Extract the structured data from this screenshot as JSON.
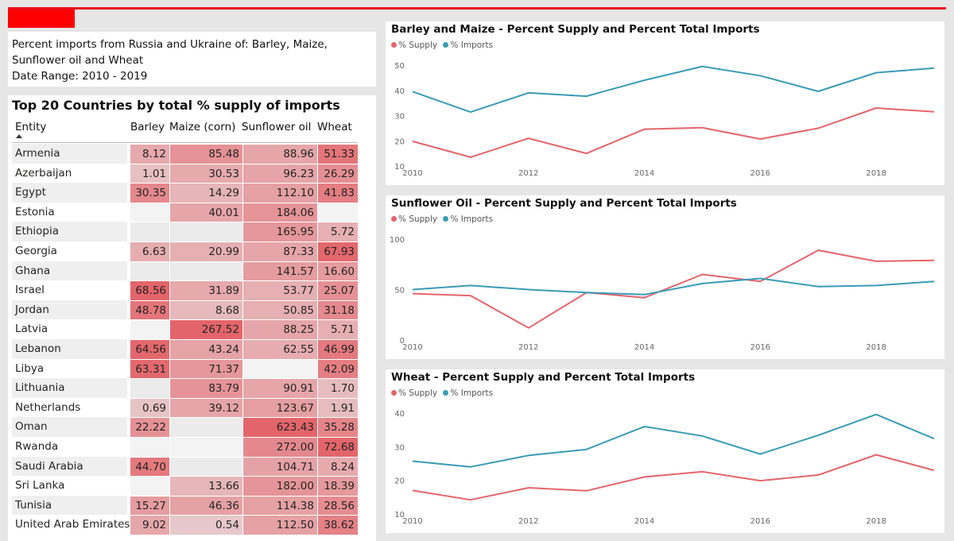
{
  "note": {
    "lines": [
      "Percent imports from Russia and Ukraine of: Barley, Maize,",
      "Sunflower oil and Wheat",
      "Date Range: 2010 - 2019"
    ]
  },
  "table": {
    "title": "Top 20 Countries by total % supply of imports",
    "headers": {
      "entity": "Entity",
      "barley": "Barley",
      "maize": "Maize (corn)",
      "sunflower": "Sunflower oil",
      "wheat": "Wheat"
    },
    "heat_color": "#e3656b",
    "rows": [
      {
        "entity": "Armenia",
        "barley": "8.12",
        "maize": "85.48",
        "sunflower": "88.96",
        "wheat": "51.33"
      },
      {
        "entity": "Azerbaijan",
        "barley": "1.01",
        "maize": "30.53",
        "sunflower": "96.23",
        "wheat": "26.29"
      },
      {
        "entity": "Egypt",
        "barley": "30.35",
        "maize": "14.29",
        "sunflower": "112.10",
        "wheat": "41.83"
      },
      {
        "entity": "Estonia",
        "barley": "",
        "maize": "40.01",
        "sunflower": "184.06",
        "wheat": ""
      },
      {
        "entity": "Ethiopia",
        "barley": "",
        "maize": "",
        "sunflower": "165.95",
        "wheat": "5.72"
      },
      {
        "entity": "Georgia",
        "barley": "6.63",
        "maize": "20.99",
        "sunflower": "87.33",
        "wheat": "67.93"
      },
      {
        "entity": "Ghana",
        "barley": "",
        "maize": "",
        "sunflower": "141.57",
        "wheat": "16.60"
      },
      {
        "entity": "Israel",
        "barley": "68.56",
        "maize": "31.89",
        "sunflower": "53.77",
        "wheat": "25.07"
      },
      {
        "entity": "Jordan",
        "barley": "48.78",
        "maize": "8.68",
        "sunflower": "50.85",
        "wheat": "31.18"
      },
      {
        "entity": "Latvia",
        "barley": "",
        "maize": "267.52",
        "sunflower": "88.25",
        "wheat": "5.71"
      },
      {
        "entity": "Lebanon",
        "barley": "64.56",
        "maize": "43.24",
        "sunflower": "62.55",
        "wheat": "46.99"
      },
      {
        "entity": "Libya",
        "barley": "63.31",
        "maize": "71.37",
        "sunflower": "",
        "wheat": "42.09"
      },
      {
        "entity": "Lithuania",
        "barley": "",
        "maize": "83.79",
        "sunflower": "90.91",
        "wheat": "1.70"
      },
      {
        "entity": "Netherlands",
        "barley": "0.69",
        "maize": "39.12",
        "sunflower": "123.67",
        "wheat": "1.91"
      },
      {
        "entity": "Oman",
        "barley": "22.22",
        "maize": "",
        "sunflower": "623.43",
        "wheat": "35.28"
      },
      {
        "entity": "Rwanda",
        "barley": "",
        "maize": "",
        "sunflower": "272.00",
        "wheat": "72.68"
      },
      {
        "entity": "Saudi Arabia",
        "barley": "44.70",
        "maize": "",
        "sunflower": "104.71",
        "wheat": "8.24"
      },
      {
        "entity": "Sri Lanka",
        "barley": "",
        "maize": "13.66",
        "sunflower": "182.00",
        "wheat": "18.39"
      },
      {
        "entity": "Tunisia",
        "barley": "15.27",
        "maize": "46.36",
        "sunflower": "114.38",
        "wheat": "28.56"
      },
      {
        "entity": "United Arab Emirates",
        "barley": "9.02",
        "maize": "0.54",
        "sunflower": "112.50",
        "wheat": "38.62"
      }
    ]
  },
  "chart_data": [
    {
      "type": "line",
      "title": "Barley and Maize - Percent Supply and Percent Total Imports",
      "legend_position": "top-left",
      "x": [
        2010,
        2011,
        2012,
        2013,
        2014,
        2015,
        2016,
        2017,
        2018,
        2019
      ],
      "xticks": [
        2010,
        2012,
        2014,
        2016,
        2018
      ],
      "yticks": [
        10,
        20,
        30,
        40,
        50
      ],
      "ylim": [
        10,
        50
      ],
      "grid": false,
      "series": [
        {
          "name": "% Supply",
          "color": "#e3656b",
          "values": [
            19.8,
            13.5,
            21.0,
            15.0,
            24.6,
            25.2,
            20.7,
            25.0,
            33.0,
            31.5
          ]
        },
        {
          "name": "% Imports",
          "color": "#3a9bb4",
          "values": [
            39.5,
            31.4,
            39.0,
            37.7,
            44.0,
            49.5,
            45.8,
            39.6,
            47.0,
            48.8
          ]
        }
      ]
    },
    {
      "type": "line",
      "title": "Sunflower Oil - Percent Supply and Percent Total Imports",
      "legend_position": "top-left",
      "x": [
        2010,
        2011,
        2012,
        2013,
        2014,
        2015,
        2016,
        2017,
        2018,
        2019
      ],
      "xticks": [
        2010,
        2012,
        2014,
        2016,
        2018
      ],
      "yticks": [
        0,
        50,
        100
      ],
      "ylim": [
        0,
        100
      ],
      "grid": false,
      "series": [
        {
          "name": "% Supply",
          "color": "#e3656b",
          "values": [
            46,
            44,
            12,
            47,
            42,
            65,
            58,
            89,
            78,
            79
          ]
        },
        {
          "name": "% Imports",
          "color": "#3a9bb4",
          "values": [
            50,
            54,
            50,
            47,
            45,
            56,
            61,
            53,
            54,
            58
          ]
        }
      ]
    },
    {
      "type": "line",
      "title": "Wheat - Percent Supply and Percent Total Imports",
      "legend_position": "top-left",
      "x": [
        2010,
        2011,
        2012,
        2013,
        2014,
        2015,
        2016,
        2017,
        2018,
        2019
      ],
      "xticks": [
        2010,
        2012,
        2014,
        2016,
        2018
      ],
      "yticks": [
        10,
        20,
        30,
        40
      ],
      "ylim": [
        10,
        40
      ],
      "grid": false,
      "series": [
        {
          "name": "% Supply",
          "color": "#e3656b",
          "values": [
            17.0,
            14.2,
            17.8,
            16.9,
            21.0,
            22.6,
            19.9,
            21.6,
            27.6,
            23.0
          ]
        },
        {
          "name": "% Imports",
          "color": "#3a9bb4",
          "values": [
            25.7,
            24.0,
            27.4,
            29.2,
            36.0,
            33.2,
            27.8,
            33.4,
            39.6,
            32.4
          ]
        }
      ]
    }
  ]
}
